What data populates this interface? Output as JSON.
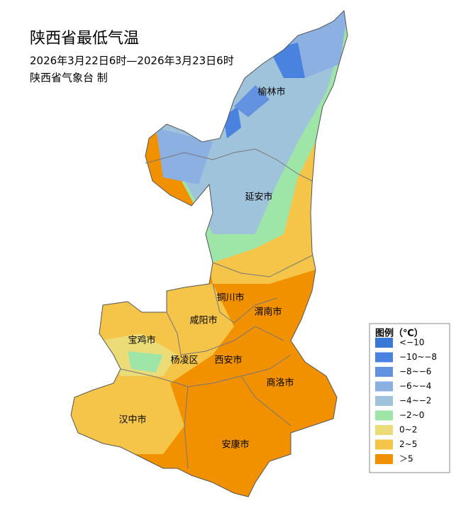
{
  "header": {
    "title": "陕西省最低气温",
    "lines": [
      "2026年3月22日6时—2026年3月23日6时",
      "陕西省气象台 制"
    ]
  },
  "map": {
    "cities": [
      {
        "label": "榆林市"
      },
      {
        "label": "延安市"
      },
      {
        "label": "铜川市"
      },
      {
        "label": "渭南市"
      },
      {
        "label": "咸阳市"
      },
      {
        "label": "宝鸡市"
      },
      {
        "label": "杨凌区"
      },
      {
        "label": "西安市"
      },
      {
        "label": "商洛市"
      },
      {
        "label": "汉中市"
      },
      {
        "label": "安康市"
      }
    ]
  },
  "legend": {
    "title": "图例（℃）",
    "items": [
      {
        "label": "<−10",
        "color": "#3a78d8"
      },
      {
        "label": "−10~−8",
        "color": "#4a82e0"
      },
      {
        "label": "−8~−6",
        "color": "#6292e0"
      },
      {
        "label": "−6~−4",
        "color": "#8cb0e2"
      },
      {
        "label": "−4~−2",
        "color": "#a0c3dc"
      },
      {
        "label": "−2~0",
        "color": "#9ee6a8"
      },
      {
        "label": "0~2",
        "color": "#ecdc78"
      },
      {
        "label": "2~5",
        "color": "#f5c54a"
      },
      {
        "label": "＞5",
        "color": "#f29100"
      }
    ]
  }
}
